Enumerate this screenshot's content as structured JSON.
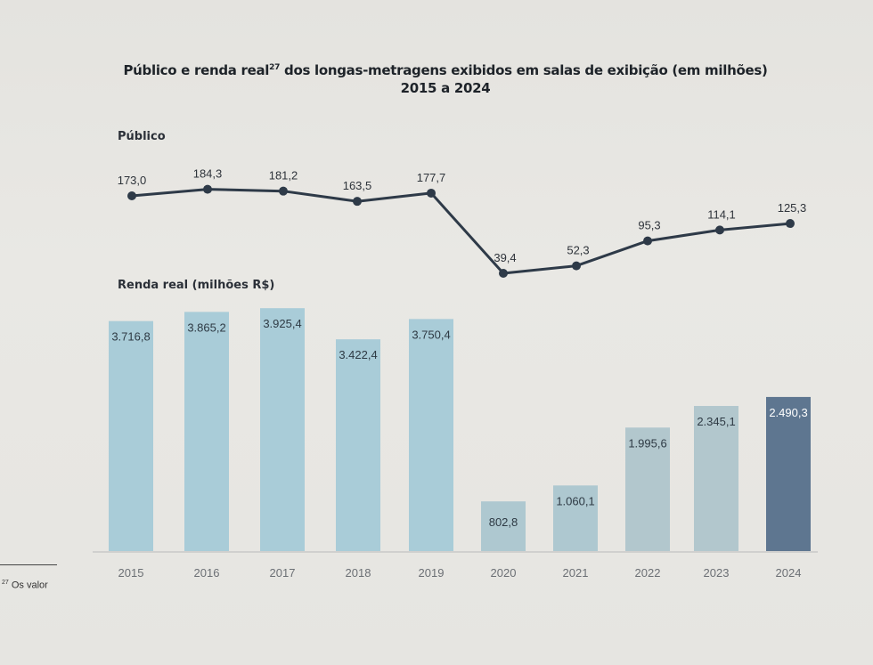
{
  "title": {
    "line1_pre": "Público e renda real",
    "line1_sup": "27",
    "line1_post": " dos longas-metragens exibidos em salas de exibição (em milhões)",
    "line2": "2015 a 2024"
  },
  "sections": {
    "publico_label": "Público",
    "renda_label": "Renda real (milhões R$)"
  },
  "footnote": {
    "sup": "27",
    "text": "Os valor"
  },
  "colors": {
    "line": "#2e3a48",
    "bar_light": "#a9ccd8",
    "bar_mid": "#aec8d0",
    "bar_grey": "#b2c7cd",
    "bar_dark": "#5e7690",
    "axis": "#c8c8c8"
  },
  "chart_data": [
    {
      "type": "line",
      "title": "Público",
      "x": [
        "2015",
        "2016",
        "2017",
        "2018",
        "2019",
        "2020",
        "2021",
        "2022",
        "2023",
        "2024"
      ],
      "values": [
        173.0,
        184.3,
        181.2,
        163.5,
        177.7,
        39.4,
        52.3,
        95.3,
        114.1,
        125.3
      ],
      "labels": [
        "173,0",
        "184,3",
        "181,2",
        "163,5",
        "177,7",
        "39,4",
        "52,3",
        "95,3",
        "114,1",
        "125,3"
      ],
      "unit": "milhões",
      "grid": false
    },
    {
      "type": "bar",
      "title": "Renda real (milhões R$)",
      "categories": [
        "2015",
        "2016",
        "2017",
        "2018",
        "2019",
        "2020",
        "2021",
        "2022",
        "2023",
        "2024"
      ],
      "values": [
        3716.8,
        3865.2,
        3925.4,
        3422.4,
        3750.4,
        802.8,
        1060.1,
        1995.6,
        2345.1,
        2490.3
      ],
      "labels": [
        "3.716,8",
        "3.865,2",
        "3.925,4",
        "3.422,4",
        "3.750,4",
        "802,8",
        "1.060,1",
        "1.995,6",
        "2.345,1",
        "2.490,3"
      ],
      "xlabel": "",
      "ylabel": "milhões R$",
      "ylim": [
        0,
        4000
      ],
      "grid": false,
      "highlight": "2024"
    }
  ]
}
